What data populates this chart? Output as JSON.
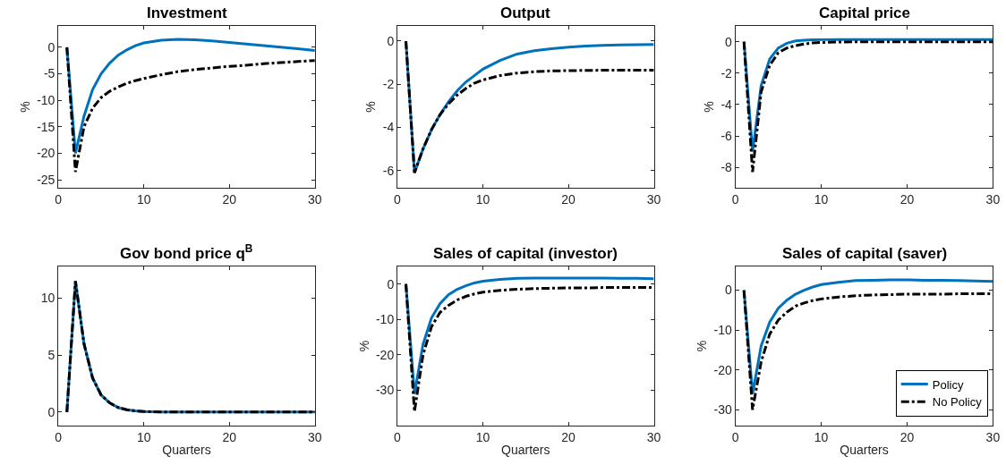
{
  "chart_data": [
    {
      "type": "line",
      "title": "Investment",
      "ylabel": "%",
      "xlim": [
        0,
        30
      ],
      "xticks": [
        0,
        10,
        20,
        30
      ],
      "ylim": [
        -26.5,
        4
      ],
      "yticks": [
        -25,
        -20,
        -15,
        -10,
        -5,
        0
      ],
      "grid": false,
      "legend": false,
      "x": [
        1,
        2,
        3,
        4,
        5,
        6,
        7,
        8,
        9,
        10,
        12,
        14,
        16,
        18,
        20,
        22,
        24,
        26,
        28,
        30
      ],
      "series": [
        {
          "color": "#0072bd",
          "line_style": "solid",
          "values": [
            0,
            -20,
            -13,
            -8,
            -5,
            -3,
            -1.5,
            -0.5,
            0.3,
            0.8,
            1.3,
            1.5,
            1.4,
            1.2,
            0.9,
            0.6,
            0.3,
            0,
            -0.3,
            -0.6
          ]
        },
        {
          "color": "#000000",
          "line_style": "dashdot",
          "values": [
            0,
            -23.5,
            -15,
            -11.5,
            -9.5,
            -8.3,
            -7.5,
            -6.8,
            -6.3,
            -5.9,
            -5.2,
            -4.6,
            -4.2,
            -3.9,
            -3.6,
            -3.4,
            -3.1,
            -2.9,
            -2.7,
            -2.5
          ]
        }
      ]
    },
    {
      "type": "line",
      "title": "Output",
      "ylabel": "%",
      "xlim": [
        0,
        30
      ],
      "xticks": [
        0,
        10,
        20,
        30
      ],
      "ylim": [
        -6.8,
        0.7
      ],
      "yticks": [
        -6,
        -4,
        -2,
        0
      ],
      "grid": false,
      "legend": false,
      "x": [
        1,
        2,
        3,
        4,
        5,
        6,
        7,
        8,
        9,
        10,
        12,
        14,
        16,
        18,
        20,
        22,
        24,
        26,
        28,
        30
      ],
      "series": [
        {
          "color": "#0072bd",
          "line_style": "solid",
          "values": [
            0,
            -6.1,
            -5,
            -4.1,
            -3.4,
            -2.8,
            -2.3,
            -1.9,
            -1.6,
            -1.3,
            -0.9,
            -0.6,
            -0.45,
            -0.35,
            -0.28,
            -0.23,
            -0.2,
            -0.18,
            -0.17,
            -0.16
          ]
        },
        {
          "color": "#000000",
          "line_style": "dashdot",
          "values": [
            0,
            -6.1,
            -5,
            -4.1,
            -3.4,
            -2.9,
            -2.5,
            -2.2,
            -1.95,
            -1.8,
            -1.6,
            -1.48,
            -1.42,
            -1.38,
            -1.37,
            -1.36,
            -1.35,
            -1.35,
            -1.35,
            -1.35
          ]
        }
      ]
    },
    {
      "type": "line",
      "title": "Capital price",
      "ylabel": "%",
      "xlim": [
        0,
        30
      ],
      "xticks": [
        0,
        10,
        20,
        30
      ],
      "ylim": [
        -9.3,
        1
      ],
      "yticks": [
        -8,
        -6,
        -4,
        -2,
        0
      ],
      "grid": false,
      "legend": false,
      "x": [
        1,
        2,
        3,
        4,
        5,
        6,
        7,
        8,
        9,
        10,
        12,
        14,
        16,
        18,
        20,
        22,
        24,
        26,
        28,
        30
      ],
      "series": [
        {
          "color": "#0072bd",
          "line_style": "solid",
          "values": [
            0,
            -7,
            -2.8,
            -1.1,
            -0.4,
            -0.1,
            0.05,
            0.1,
            0.12,
            0.13,
            0.14,
            0.14,
            0.14,
            0.14,
            0.14,
            0.14,
            0.14,
            0.14,
            0.14,
            0.14
          ]
        },
        {
          "color": "#000000",
          "line_style": "dashdot",
          "values": [
            0,
            -8.3,
            -3.2,
            -1.5,
            -0.7,
            -0.4,
            -0.25,
            -0.15,
            -0.08,
            -0.05,
            -0.02,
            0,
            0,
            0,
            0,
            0,
            0,
            0,
            0,
            0
          ]
        }
      ]
    },
    {
      "type": "line",
      "title": "Gov bond price q$^{B}$",
      "xlabel": "Quarters",
      "xlim": [
        0,
        30
      ],
      "xticks": [
        0,
        10,
        20,
        30
      ],
      "ylim": [
        -1.2,
        12.8
      ],
      "yticks": [
        0,
        5,
        10
      ],
      "grid": false,
      "legend": false,
      "x": [
        1,
        2,
        3,
        4,
        5,
        6,
        7,
        8,
        9,
        10,
        12,
        14,
        16,
        18,
        20,
        22,
        24,
        26,
        28,
        30
      ],
      "series": [
        {
          "color": "#0072bd",
          "line_style": "solid",
          "values": [
            0,
            11.5,
            6,
            3,
            1.5,
            0.8,
            0.4,
            0.2,
            0.1,
            0.05,
            0.01,
            0,
            0,
            0,
            0,
            0,
            0,
            0,
            0,
            0
          ]
        },
        {
          "color": "#000000",
          "line_style": "dashdot",
          "values": [
            0,
            11.5,
            6,
            3,
            1.5,
            0.8,
            0.4,
            0.2,
            0.1,
            0.05,
            0.01,
            0,
            0,
            0,
            0,
            0,
            0,
            0,
            0,
            0
          ]
        }
      ]
    },
    {
      "type": "line",
      "title": "Sales of capital (investor)",
      "xlabel": "Quarters",
      "ylabel": "%",
      "xlim": [
        0,
        30
      ],
      "xticks": [
        0,
        10,
        20,
        30
      ],
      "ylim": [
        -40,
        5
      ],
      "yticks": [
        -30,
        -20,
        -10,
        0
      ],
      "grid": false,
      "legend": false,
      "x": [
        1,
        2,
        3,
        4,
        5,
        6,
        7,
        8,
        9,
        10,
        12,
        14,
        16,
        18,
        20,
        22,
        24,
        26,
        28,
        30
      ],
      "series": [
        {
          "color": "#0072bd",
          "line_style": "solid",
          "values": [
            0,
            -31,
            -17,
            -9.5,
            -5.5,
            -3,
            -1.5,
            -0.5,
            0.3,
            0.8,
            1.3,
            1.6,
            1.7,
            1.7,
            1.7,
            1.7,
            1.7,
            1.6,
            1.6,
            1.5
          ]
        },
        {
          "color": "#000000",
          "line_style": "dashdot",
          "values": [
            0,
            -36,
            -20,
            -12,
            -8,
            -6,
            -4.5,
            -3.5,
            -2.8,
            -2.3,
            -1.8,
            -1.5,
            -1.3,
            -1.2,
            -1.1,
            -1.1,
            -1,
            -1,
            -1,
            -1
          ]
        }
      ]
    },
    {
      "type": "line",
      "title": "Sales of capital (saver)",
      "xlabel": "Quarters",
      "ylabel": "%",
      "xlim": [
        0,
        30
      ],
      "xticks": [
        0,
        10,
        20,
        30
      ],
      "ylim": [
        -34,
        6
      ],
      "yticks": [
        -30,
        -20,
        -10,
        0
      ],
      "grid": false,
      "legend": "bottom right",
      "x": [
        1,
        2,
        3,
        4,
        5,
        6,
        7,
        8,
        9,
        10,
        12,
        14,
        16,
        18,
        20,
        22,
        24,
        26,
        28,
        30
      ],
      "series": [
        {
          "name": "Policy",
          "color": "#0072bd",
          "line_style": "solid",
          "values": [
            0,
            -26,
            -14,
            -8,
            -4.5,
            -2.5,
            -1,
            0,
            0.8,
            1.4,
            2,
            2.4,
            2.5,
            2.6,
            2.6,
            2.5,
            2.5,
            2.4,
            2.3,
            2.2
          ]
        },
        {
          "name": "No Policy",
          "color": "#000000",
          "line_style": "dashdot",
          "values": [
            0,
            -30,
            -18,
            -11,
            -7.5,
            -5.5,
            -4,
            -3.2,
            -2.6,
            -2.2,
            -1.7,
            -1.4,
            -1.2,
            -1.1,
            -1,
            -1,
            -1,
            -0.9,
            -0.9,
            -0.9
          ]
        }
      ]
    }
  ]
}
